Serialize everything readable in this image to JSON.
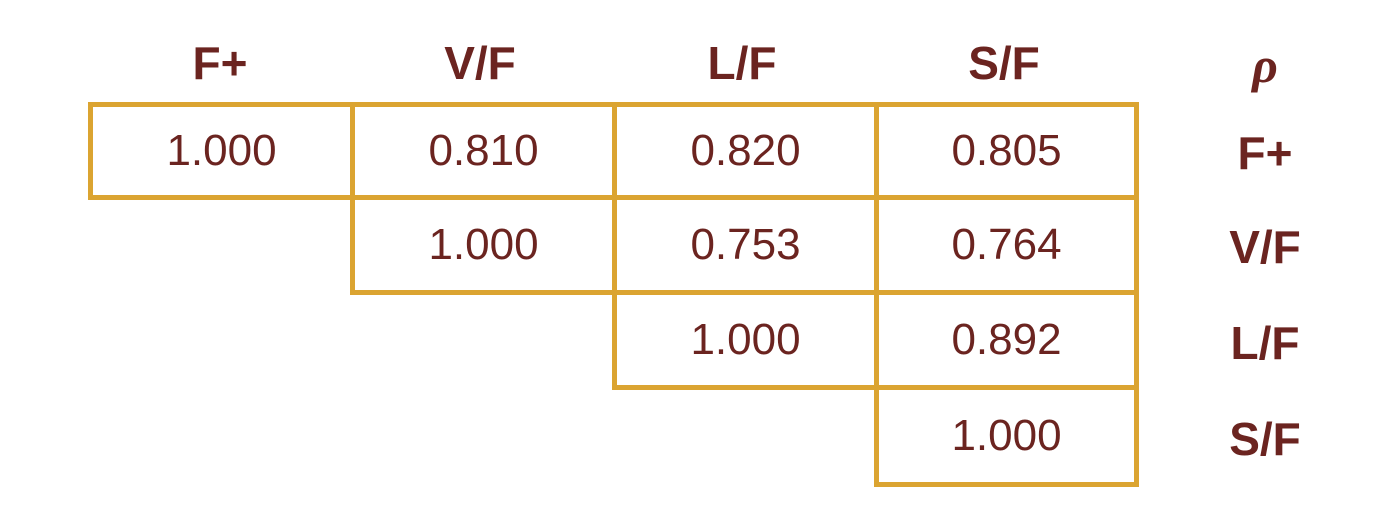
{
  "table": {
    "corner_label": "ρ",
    "column_headers": [
      "F+",
      "V/F",
      "L/F",
      "S/F"
    ],
    "row_headers": [
      "F+",
      "V/F",
      "L/F",
      "S/F"
    ],
    "rows": [
      [
        "1.000",
        "0.810",
        "0.820",
        "0.805"
      ],
      [
        "1.000",
        "0.753",
        "0.764"
      ],
      [
        "1.000",
        "0.892"
      ],
      [
        "1.000"
      ]
    ]
  },
  "colors": {
    "text": "#6b2420",
    "border": "#dba431"
  }
}
